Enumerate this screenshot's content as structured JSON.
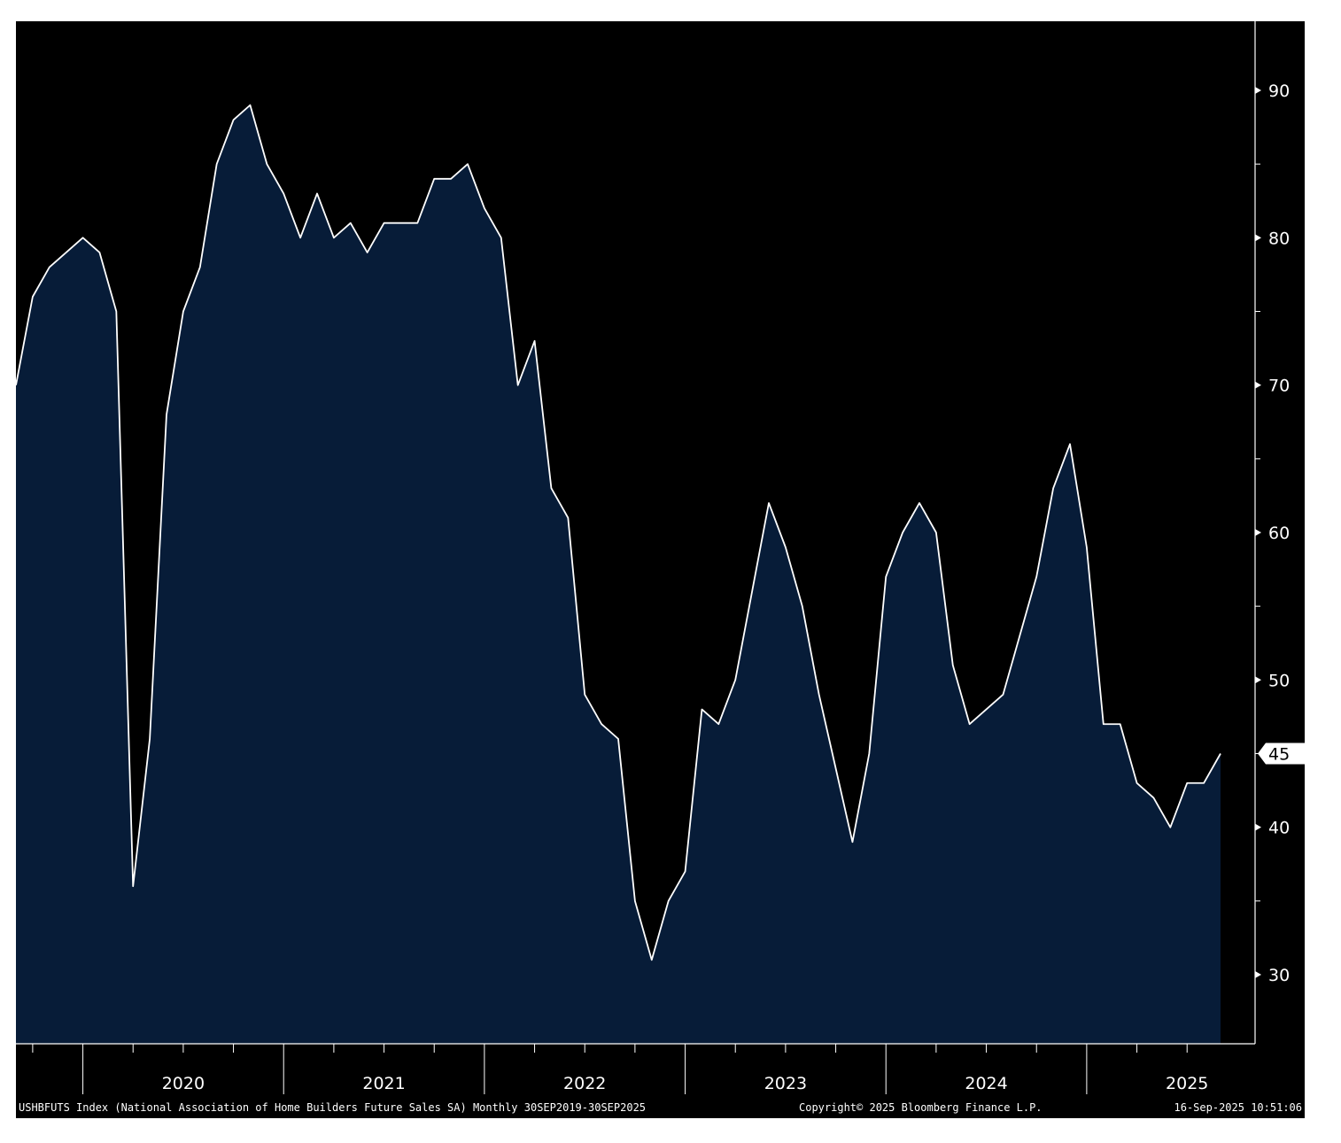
{
  "chart_data": {
    "type": "area",
    "title": "",
    "xlabel": "",
    "ylabel": "",
    "x_start": "2019-09",
    "x_end": "2025-09",
    "frequency": "monthly",
    "ylim": [
      25,
      95
    ],
    "yticks": [
      30,
      40,
      50,
      60,
      70,
      80,
      90
    ],
    "year_labels": [
      "2020",
      "2021",
      "2022",
      "2023",
      "2024",
      "2025"
    ],
    "last_value_label": "45",
    "grid": false,
    "series": [
      {
        "values": [
          70,
          76,
          78,
          79,
          80,
          79,
          75,
          36,
          46,
          68,
          75,
          78,
          85,
          88,
          89,
          85,
          83,
          80,
          83,
          80,
          81,
          79,
          81,
          81,
          81,
          84,
          84,
          85,
          82,
          80,
          70,
          73,
          63,
          61,
          49,
          47,
          46,
          35,
          31,
          35,
          37,
          48,
          47,
          50,
          56,
          62,
          59,
          55,
          49,
          44,
          39,
          45,
          57,
          60,
          62,
          60,
          51,
          47,
          48,
          49,
          53,
          57,
          63,
          66,
          59,
          47,
          47,
          43,
          42,
          40,
          43,
          43,
          45
        ]
      }
    ],
    "colors": {
      "background": "#000000",
      "area_fill": "#071c38",
      "line": "#ffffff",
      "axis": "#ffffff",
      "text": "#ffffff"
    }
  },
  "footer": {
    "description": "USHBFUTS Index (National Association of Home Builders Future Sales SA)  Monthly 30SEP2019-30SEP2025",
    "copyright": "Copyright© 2025 Bloomberg Finance L.P.",
    "timestamp": "16-Sep-2025 10:51:06"
  }
}
